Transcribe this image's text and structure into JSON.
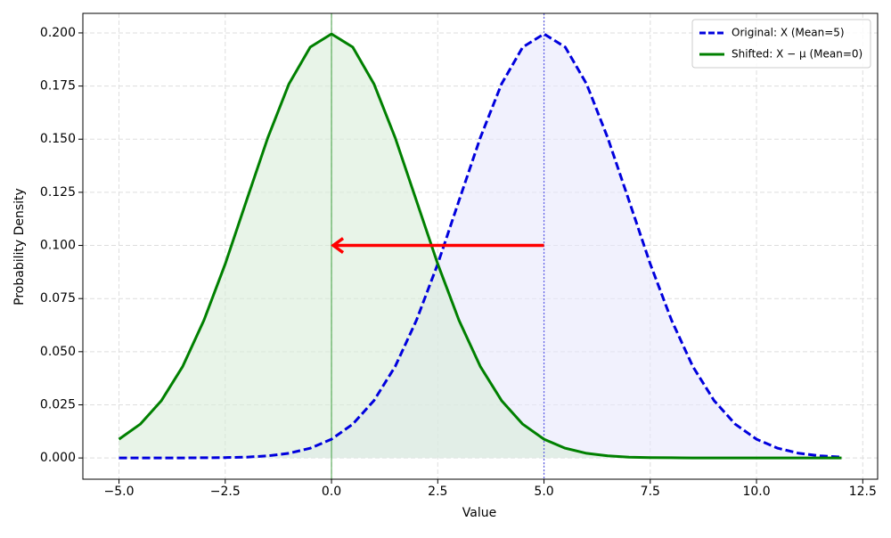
{
  "chart_data": {
    "type": "line",
    "xlabel": "Value",
    "ylabel": "Probability Density",
    "x": [
      -5,
      -4.5,
      -4,
      -3.5,
      -3,
      -2.5,
      -2,
      -1.5,
      -1,
      -0.5,
      0,
      0.5,
      1,
      1.5,
      2,
      2.5,
      3,
      3.5,
      4,
      4.5,
      5,
      5.5,
      6,
      6.5,
      7,
      7.5,
      8,
      8.5,
      9,
      9.5,
      10,
      10.5,
      11,
      11.5,
      12
    ],
    "series": [
      {
        "name": "Original: X (Mean=5)",
        "color": "#0000dd",
        "dash": true,
        "fill": "#e8e8fb",
        "values": [
          0,
          0,
          0,
          0,
          0.0001,
          0.0002,
          0.0004,
          0.001,
          0.0022,
          0.0046,
          0.0088,
          0.0159,
          0.027,
          0.0431,
          0.0648,
          0.0913,
          0.121,
          0.1506,
          0.176,
          0.1933,
          0.1995,
          0.1933,
          0.176,
          0.1506,
          0.121,
          0.0913,
          0.0648,
          0.0431,
          0.027,
          0.0159,
          0.0088,
          0.0046,
          0.0022,
          0.001,
          0.0004
        ]
      },
      {
        "name": "Shifted: X − μ (Mean=0)",
        "color": "#008000",
        "dash": false,
        "fill": "#d9ecd9",
        "values": [
          0.0088,
          0.0159,
          0.027,
          0.0431,
          0.0648,
          0.0913,
          0.121,
          0.1506,
          0.176,
          0.1933,
          0.1995,
          0.1933,
          0.176,
          0.1506,
          0.121,
          0.0913,
          0.0648,
          0.0431,
          0.027,
          0.0159,
          0.0088,
          0.0046,
          0.0022,
          0.001,
          0.0004,
          0.0002,
          0.0001,
          0,
          0,
          0,
          0,
          0,
          0,
          0,
          0
        ]
      }
    ],
    "vlines": [
      {
        "x": 0,
        "color": "#008000",
        "dotted": false
      },
      {
        "x": 5,
        "color": "#0000dd",
        "dotted": true
      }
    ],
    "arrow": {
      "x_from": 5,
      "x_to": 0,
      "y": 0.1,
      "color": "#ff0000"
    },
    "xlim": [
      -5.85,
      12.85
    ],
    "ylim": [
      -0.01,
      0.2092
    ],
    "xticks": [
      {
        "value": -5,
        "label": "−5.0"
      },
      {
        "value": -2.5,
        "label": "−2.5"
      },
      {
        "value": 0,
        "label": "0.0"
      },
      {
        "value": 2.5,
        "label": "2.5"
      },
      {
        "value": 5,
        "label": "5.0"
      },
      {
        "value": 7.5,
        "label": "7.5"
      },
      {
        "value": 10,
        "label": "10.0"
      },
      {
        "value": 12.5,
        "label": "12.5"
      }
    ],
    "yticks": [
      {
        "value": 0,
        "label": "0.000"
      },
      {
        "value": 0.025,
        "label": "0.025"
      },
      {
        "value": 0.05,
        "label": "0.050"
      },
      {
        "value": 0.075,
        "label": "0.075"
      },
      {
        "value": 0.1,
        "label": "0.100"
      },
      {
        "value": 0.125,
        "label": "0.125"
      },
      {
        "value": 0.15,
        "label": "0.150"
      },
      {
        "value": 0.175,
        "label": "0.175"
      },
      {
        "value": 0.2,
        "label": "0.200"
      }
    ],
    "grid": true,
    "legend": "upper right"
  }
}
